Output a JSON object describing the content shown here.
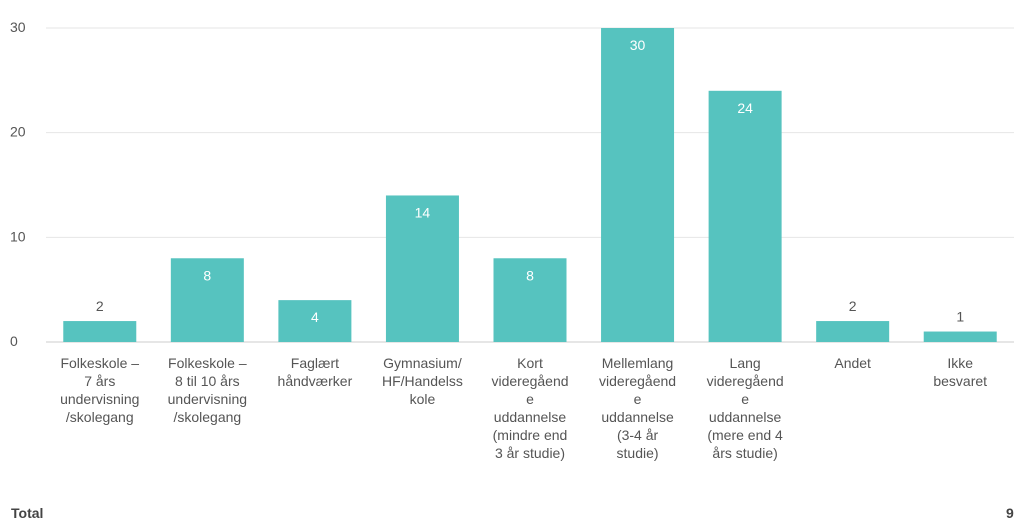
{
  "chart_data": {
    "type": "bar",
    "categories": [
      "Folkeskole – 7 års undervisning /skolegang",
      "Folkeskole – 8 til 10 års undervisning /skolegang",
      "Faglært håndværker",
      "Gymnasium/ HF/Handelss kole",
      "Kort videregåend e uddannelse (mindre end 3 år studie)",
      "Mellemlang videregåend e uddannelse (3-4 år studie)",
      "Lang videregåend e uddannelse (mere end 4 års studie)",
      "Andet",
      "Ikke besvaret"
    ],
    "category_lines": [
      [
        "Folkeskole –",
        "7 års",
        "undervisning",
        "/skolegang"
      ],
      [
        "Folkeskole –",
        "8 til 10 års",
        "undervisning",
        "/skolegang"
      ],
      [
        "Faglært",
        "håndværker"
      ],
      [
        "Gymnasium/",
        "HF/Handelss",
        "kole"
      ],
      [
        "Kort",
        "videregåend",
        "e",
        "uddannelse",
        "(mindre end",
        "3 år studie)"
      ],
      [
        "Mellemlang",
        "videregåend",
        "e",
        "uddannelse",
        "(3-4 år",
        "studie)"
      ],
      [
        "Lang",
        "videregåend",
        "e",
        "uddannelse",
        "(mere end 4",
        "års studie)"
      ],
      [
        "Andet"
      ],
      [
        "Ikke",
        "besvaret"
      ]
    ],
    "values": [
      2,
      8,
      4,
      14,
      8,
      30,
      24,
      2,
      1
    ],
    "ylim": [
      0,
      30
    ],
    "yticks": [
      0,
      10,
      20,
      30
    ],
    "grid": true,
    "bar_color": "#56c3bf",
    "title": "",
    "xlabel": "",
    "ylabel": ""
  },
  "footer": {
    "total_label": "Total",
    "total_value": "9"
  }
}
